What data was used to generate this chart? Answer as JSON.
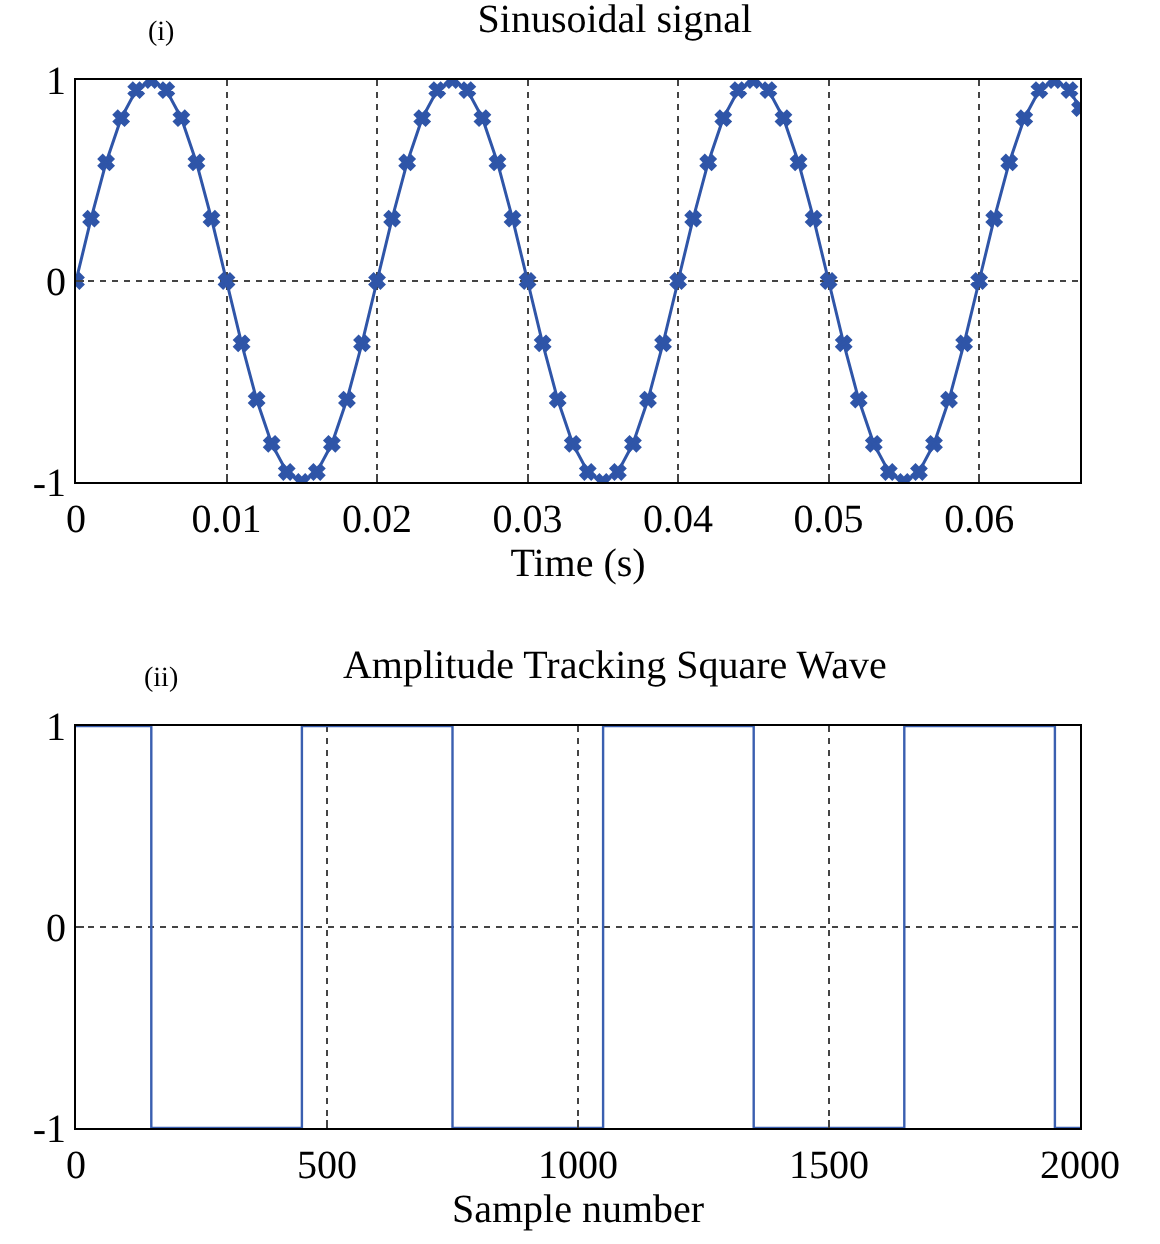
{
  "chart_data": [
    {
      "type": "line",
      "title": "Sinusoidal signal",
      "xlabel": "Time (s)",
      "annotations": [
        "(i)"
      ],
      "series": [
        {
          "color": "#2f55a8",
          "x": [
            0,
            0.001,
            0.002,
            0.003,
            0.004,
            0.005,
            0.006,
            0.007,
            0.008,
            0.009,
            0.01,
            0.011,
            0.012,
            0.013,
            0.014,
            0.015,
            0.016,
            0.017,
            0.018,
            0.019,
            0.02,
            0.021,
            0.022,
            0.023,
            0.024,
            0.025,
            0.026,
            0.027,
            0.028,
            0.029,
            0.03,
            0.031,
            0.032,
            0.033,
            0.034,
            0.035,
            0.036,
            0.037,
            0.038,
            0.039,
            0.04,
            0.041,
            0.042,
            0.043,
            0.044,
            0.045,
            0.046,
            0.047,
            0.048,
            0.049,
            0.05,
            0.051,
            0.052,
            0.053,
            0.054,
            0.055,
            0.056,
            0.057,
            0.058,
            0.059,
            0.06,
            0.061,
            0.062,
            0.063,
            0.064,
            0.065,
            0.066,
            0.0667
          ],
          "values": [
            0,
            0.31,
            0.59,
            0.81,
            0.95,
            1,
            0.95,
            0.81,
            0.59,
            0.31,
            0,
            -0.31,
            -0.59,
            -0.81,
            -0.95,
            -1,
            -0.95,
            -0.81,
            -0.59,
            -0.31,
            0,
            0.31,
            0.59,
            0.81,
            0.95,
            1,
            0.95,
            0.81,
            0.59,
            0.31,
            0,
            -0.31,
            -0.59,
            -0.81,
            -0.95,
            -1,
            -0.95,
            -0.81,
            -0.59,
            -0.31,
            0,
            0.31,
            0.59,
            0.81,
            0.95,
            1,
            0.95,
            0.81,
            0.59,
            0.31,
            0,
            -0.31,
            -0.59,
            -0.81,
            -0.95,
            -1,
            -0.95,
            -0.81,
            -0.59,
            -0.31,
            0,
            0.31,
            0.59,
            0.81,
            0.95,
            1,
            0.95,
            0.86
          ]
        }
      ],
      "xlim": [
        0,
        0.0667
      ],
      "xticks": [
        0,
        0.01,
        0.02,
        0.03,
        0.04,
        0.05,
        0.06
      ],
      "ylim": [
        -1,
        1
      ],
      "yticks": [
        -1,
        0,
        1
      ],
      "grid": true,
      "marker": "cross",
      "line_style": "solid"
    },
    {
      "type": "step",
      "title": "Amplitude Tracking Square Wave",
      "xlabel": "Sample number",
      "annotations": [
        "(ii)"
      ],
      "series": [
        {
          "color": "#3a5fb0",
          "x": [
            0,
            150,
            450,
            750,
            1050,
            1350,
            1650,
            1950,
            2000
          ],
          "values": [
            1,
            -1,
            1,
            -1,
            1,
            -1,
            1,
            -1,
            -1
          ]
        }
      ],
      "xlim": [
        0,
        2000
      ],
      "xticks": [
        0,
        500,
        1000,
        1500,
        2000
      ],
      "ylim": [
        -1,
        1
      ],
      "yticks": [
        -1,
        0,
        1
      ],
      "grid": true,
      "marker": "none",
      "line_style": "solid"
    }
  ]
}
